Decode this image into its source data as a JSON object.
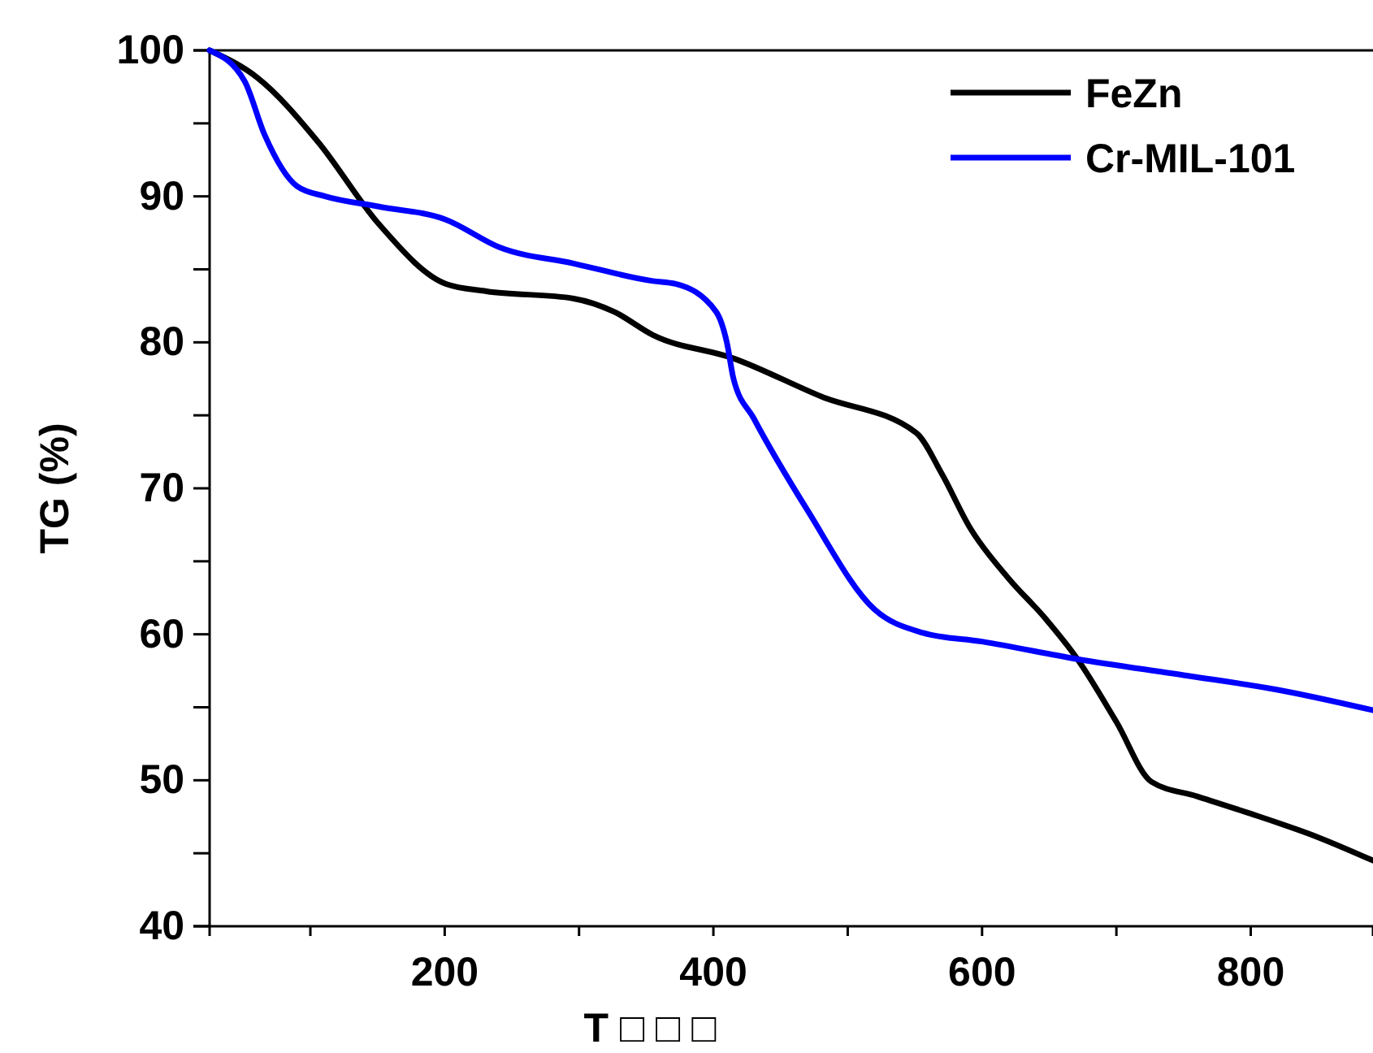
{
  "chart_data": {
    "type": "line",
    "xlabel": "T □ □ □",
    "ylabel": "TG (%)",
    "xlim": [
      25,
      891
    ],
    "ylim": [
      40,
      100
    ],
    "xticks": [
      {
        "value": 100,
        "label": null
      },
      200,
      {
        "value": 300,
        "label": null
      },
      400,
      {
        "value": 500,
        "label": null
      },
      600,
      {
        "value": 700,
        "label": null
      },
      800
    ],
    "yticks": [
      40,
      {
        "value": 45,
        "label": null
      },
      50,
      {
        "value": 55,
        "label": null
      },
      60,
      {
        "value": 65,
        "label": null
      },
      70,
      {
        "value": 75,
        "label": null
      },
      80,
      {
        "value": 85,
        "label": null
      },
      90,
      {
        "value": 95,
        "label": null
      },
      100
    ],
    "legend": "top right",
    "grid": false,
    "marker": "none",
    "line_style": "solid",
    "series": [
      {
        "name": "FeZn",
        "color": "#000000",
        "x": [
          25,
          61,
          106,
          151,
          201,
          231,
          296,
          326,
          355,
          415,
          480,
          551,
          570,
          591,
          620,
          646,
          671,
          700,
          726,
          760,
          797,
          850,
          891
        ],
        "values": [
          100,
          98.1,
          93.7,
          88.1,
          84.0,
          83.5,
          83.0,
          82.1,
          80.5,
          78.9,
          76.3,
          73.8,
          71.0,
          67.3,
          63.8,
          61.2,
          58.3,
          54.0,
          49.9,
          48.9,
          47.8,
          46.1,
          44.5
        ]
      },
      {
        "name": "Cr-MIL-101",
        "color": "#0000ff",
        "x": [
          25,
          51,
          66,
          90,
          111,
          151,
          201,
          241,
          296,
          355,
          372,
          402,
          410,
          415,
          430,
          470,
          520,
          556,
          600,
          671,
          750,
          820,
          891
        ],
        "values": [
          100,
          97.9,
          94.2,
          90.7,
          90.0,
          89.3,
          88.4,
          86.5,
          85.4,
          84.2,
          84.0,
          82.1,
          80.0,
          77.5,
          74.8,
          68.5,
          61.7,
          60.1,
          59.5,
          58.3,
          57.2,
          56.2,
          54.8
        ]
      }
    ]
  }
}
